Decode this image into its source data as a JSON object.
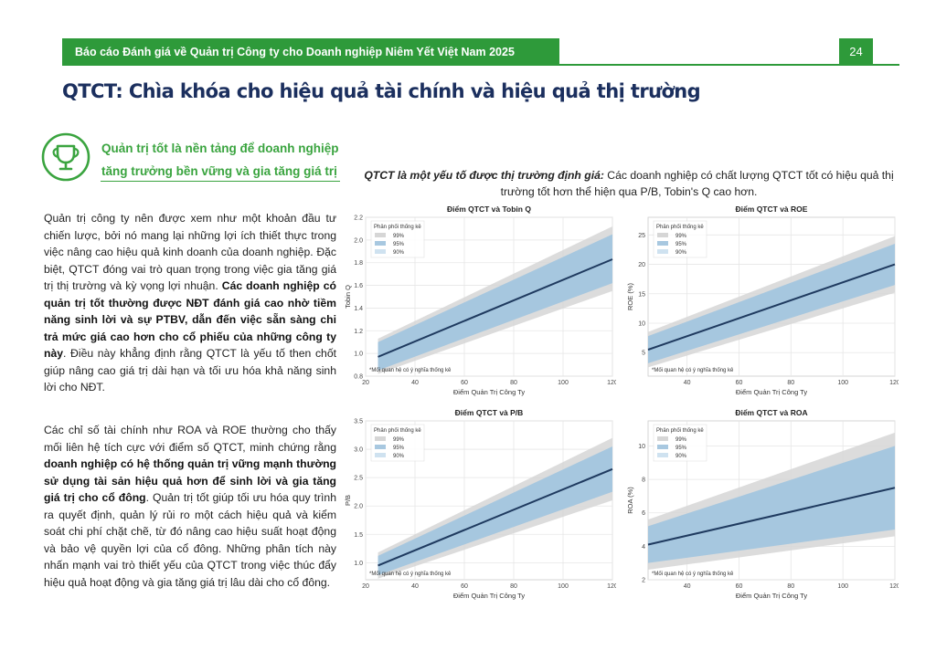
{
  "header": {
    "title": "Báo cáo Đánh giá về Quản trị Công ty cho Doanh nghiệp Niêm Yết Việt Nam 2025",
    "page_number": "24"
  },
  "main_title": "QTCT: Chìa khóa cho hiệu quả tài chính và hiệu quả thị trường",
  "callout": {
    "icon": "trophy-icon",
    "line1": "Quản trị tốt là nền tảng để doanh nghiệp",
    "line2": "tăng trưởng bền vững và gia tăng giá trị"
  },
  "paragraph1": {
    "part1": "Quản trị công ty nên được xem như một khoản đầu tư chiến lược, bởi nó mang lại những lợi ích thiết thực trong việc nâng cao hiệu quả kinh doanh của doanh nghiệp. Đặc biệt, QTCT đóng vai trò quan trọng trong việc gia tăng giá trị thị trường và kỳ vọng lợi nhuận. ",
    "bold": "Các doanh nghiệp có quản trị tốt thường được NĐT đánh giá cao nhờ tiềm năng sinh lời và sự PTBV, dẫn đến việc sẵn sàng chi trả mức giá cao hơn cho cổ phiếu của những công ty này",
    "part2": ". Điều này khẳng định rằng QTCT là yếu tố then chốt giúp nâng cao giá trị dài hạn và tối ưu hóa khả năng sinh lời cho NĐT."
  },
  "paragraph2": {
    "part1": "Các chỉ số tài chính như ROA và ROE thường cho thấy mối liên hệ tích cực với điểm số QTCT, minh chứng rằng ",
    "bold": "doanh nghiệp có hệ thống quản trị vững mạnh thường sử dụng tài sản hiệu quả hơn để sinh lời và gia tăng giá trị cho cổ đông",
    "part2": ". Quản trị tốt giúp tối ưu hóa quy trình ra quyết định, quản lý rủi ro một cách hiệu quả và kiểm soát chi phí chặt chẽ, từ đó nâng cao hiệu suất hoạt động và bảo vệ quyền lợi của cổ đông. Những phân tích này nhấn mạnh vai trò thiết yếu của QTCT trong việc thúc đẩy hiệu quả hoạt động và gia tăng giá trị lâu dài cho cổ đông."
  },
  "figure_caption": {
    "lead": "QTCT là một yếu tố được thị trường định giá:",
    "rest": " Các doanh nghiệp có chất lượng QTCT tốt có hiệu quả thị trường tốt hơn thể hiện qua P/B, Tobin's Q cao hơn."
  },
  "legend": {
    "title": "Phân phối thống kê",
    "items": [
      "99%",
      "95%",
      "90%"
    ],
    "colors": [
      "#d6d6d6",
      "#a8c8e0",
      "#cfe2f0"
    ]
  },
  "colors": {
    "brand_green": "#2e9a3a",
    "title_navy": "#1b2f5e",
    "line": "#1f3a5f",
    "band": "#9cc3df"
  },
  "chart_data": [
    {
      "type": "line",
      "title": "Điểm QTCT và Tobin Q",
      "xlabel": "Điểm Quản Trị Công Ty",
      "ylabel": "Tobin Q",
      "xlim": [
        20,
        120
      ],
      "ylim": [
        0.8,
        2.2
      ],
      "xticks": [
        20,
        40,
        60,
        80,
        100,
        120
      ],
      "yticks": [
        0.8,
        1.0,
        1.2,
        1.4,
        1.6,
        1.8,
        2.0,
        2.2
      ],
      "x": [
        25,
        120
      ],
      "y": [
        0.97,
        1.83
      ],
      "band_95": {
        "low": [
          0.85,
          1.62
        ],
        "high": [
          1.1,
          2.05
        ]
      },
      "band_99": {
        "low": [
          0.82,
          1.55
        ],
        "high": [
          1.13,
          2.12
        ]
      },
      "note": "*Mối quan hệ có ý nghĩa thống kê"
    },
    {
      "type": "line",
      "title": "Điểm QTCT và ROE",
      "xlabel": "Điểm Quản Trị Công Ty",
      "ylabel": "ROE (%)",
      "xlim": [
        25,
        120
      ],
      "ylim": [
        1,
        28
      ],
      "xticks": [
        40,
        60,
        80,
        100,
        120
      ],
      "yticks": [
        5,
        10,
        15,
        20,
        25
      ],
      "x": [
        25,
        120
      ],
      "y": [
        5.5,
        20.0
      ],
      "band_95": {
        "low": [
          3.2,
          16.5
        ],
        "high": [
          7.8,
          23.5
        ]
      },
      "band_99": {
        "low": [
          2.5,
          15.2
        ],
        "high": [
          8.5,
          24.8
        ]
      },
      "note": "*Mối quan hệ có ý nghĩa thống kê"
    },
    {
      "type": "line",
      "title": "Điểm QTCT và P/B",
      "xlabel": "Điểm Quản Trị Công Ty",
      "ylabel": "P/B",
      "xlim": [
        20,
        120
      ],
      "ylim": [
        0.7,
        3.5
      ],
      "xticks": [
        20,
        40,
        60,
        80,
        100,
        120
      ],
      "yticks": [
        1.0,
        1.5,
        2.0,
        2.5,
        3.0,
        3.5
      ],
      "x": [
        25,
        120
      ],
      "y": [
        0.95,
        2.65
      ],
      "band_95": {
        "low": [
          0.78,
          2.25
        ],
        "high": [
          1.12,
          3.05
        ]
      },
      "band_99": {
        "low": [
          0.72,
          2.1
        ],
        "high": [
          1.18,
          3.2
        ]
      },
      "note": "*Mối quan hệ có ý nghĩa thống kê"
    },
    {
      "type": "line",
      "title": "Điểm QTCT và ROA",
      "xlabel": "Điểm Quản Trị Công Ty",
      "ylabel": "ROA (%)",
      "xlim": [
        25,
        120
      ],
      "ylim": [
        2,
        11.5
      ],
      "xticks": [
        40,
        60,
        80,
        100,
        120
      ],
      "yticks": [
        2,
        4,
        6,
        8,
        10
      ],
      "x": [
        25,
        120
      ],
      "y": [
        4.1,
        7.5
      ],
      "band_95": {
        "low": [
          3.0,
          5.0
        ],
        "high": [
          5.2,
          10.0
        ]
      },
      "band_99": {
        "low": [
          2.6,
          4.6
        ],
        "high": [
          5.6,
          10.8
        ]
      },
      "note": "*Mối quan hệ có ý nghĩa thống kê"
    }
  ]
}
